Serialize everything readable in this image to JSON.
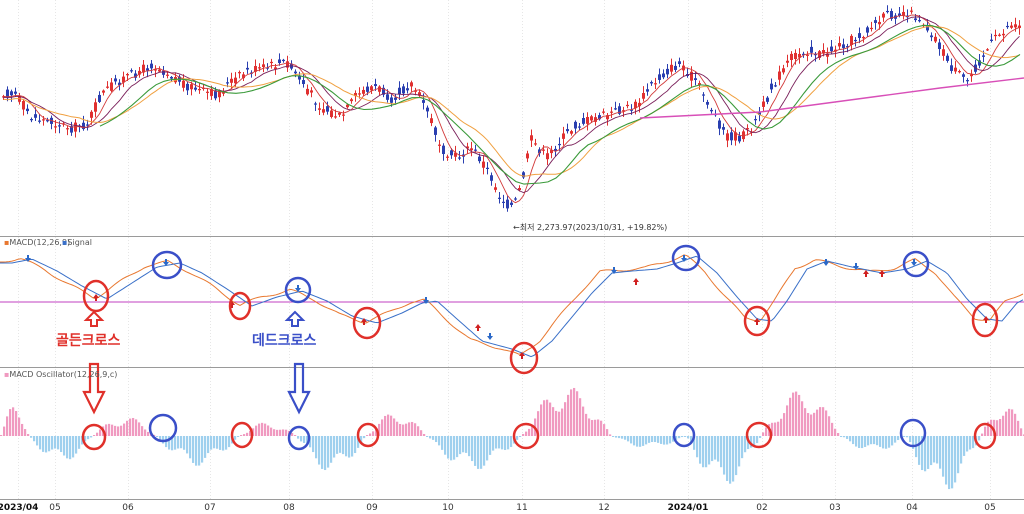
{
  "chart_data": [
    {
      "type": "candlestick",
      "panel": "price",
      "x_start": "2023/04",
      "annotation_low": "←최저 2,273.97(2023/10/31, +19.82%)",
      "low_value": 2273.97,
      "low_date": "2023/10/31",
      "moving_average_colors": [
        "#d23a3a",
        "#7a1f5a",
        "#f0a040",
        "#3a9a3a",
        "#d84fb8"
      ]
    },
    {
      "type": "line",
      "panel": "macd",
      "legend": "MACD(12,26,9)",
      "legend2": "Signal",
      "series": [
        {
          "name": "MACD",
          "color": "#e87830"
        },
        {
          "name": "Signal",
          "color": "#3a70c8"
        }
      ],
      "zero_line_color": "#c040c0"
    },
    {
      "type": "bar",
      "panel": "oscillator",
      "legend": "MACD Oscillator(12,26,9,c)",
      "positive_color": "#f09ac0",
      "negative_color": "#9fd0ee"
    }
  ],
  "x_axis": {
    "ticks": [
      {
        "label": "2023/04",
        "bold": true
      },
      {
        "label": "05",
        "bold": false
      },
      {
        "label": "06",
        "bold": false
      },
      {
        "label": "07",
        "bold": false
      },
      {
        "label": "08",
        "bold": false
      },
      {
        "label": "09",
        "bold": false
      },
      {
        "label": "10",
        "bold": false
      },
      {
        "label": "11",
        "bold": false
      },
      {
        "label": "12",
        "bold": false
      },
      {
        "label": "2024/01",
        "bold": true
      },
      {
        "label": "02",
        "bold": false
      },
      {
        "label": "03",
        "bold": false
      },
      {
        "label": "04",
        "bold": false
      },
      {
        "label": "05",
        "bold": false
      }
    ]
  },
  "annotations": {
    "golden_cross": "골든크로스",
    "dead_cross": "데드크로스",
    "golden_color": "#e0302a",
    "dead_color": "#3a4fc8"
  }
}
